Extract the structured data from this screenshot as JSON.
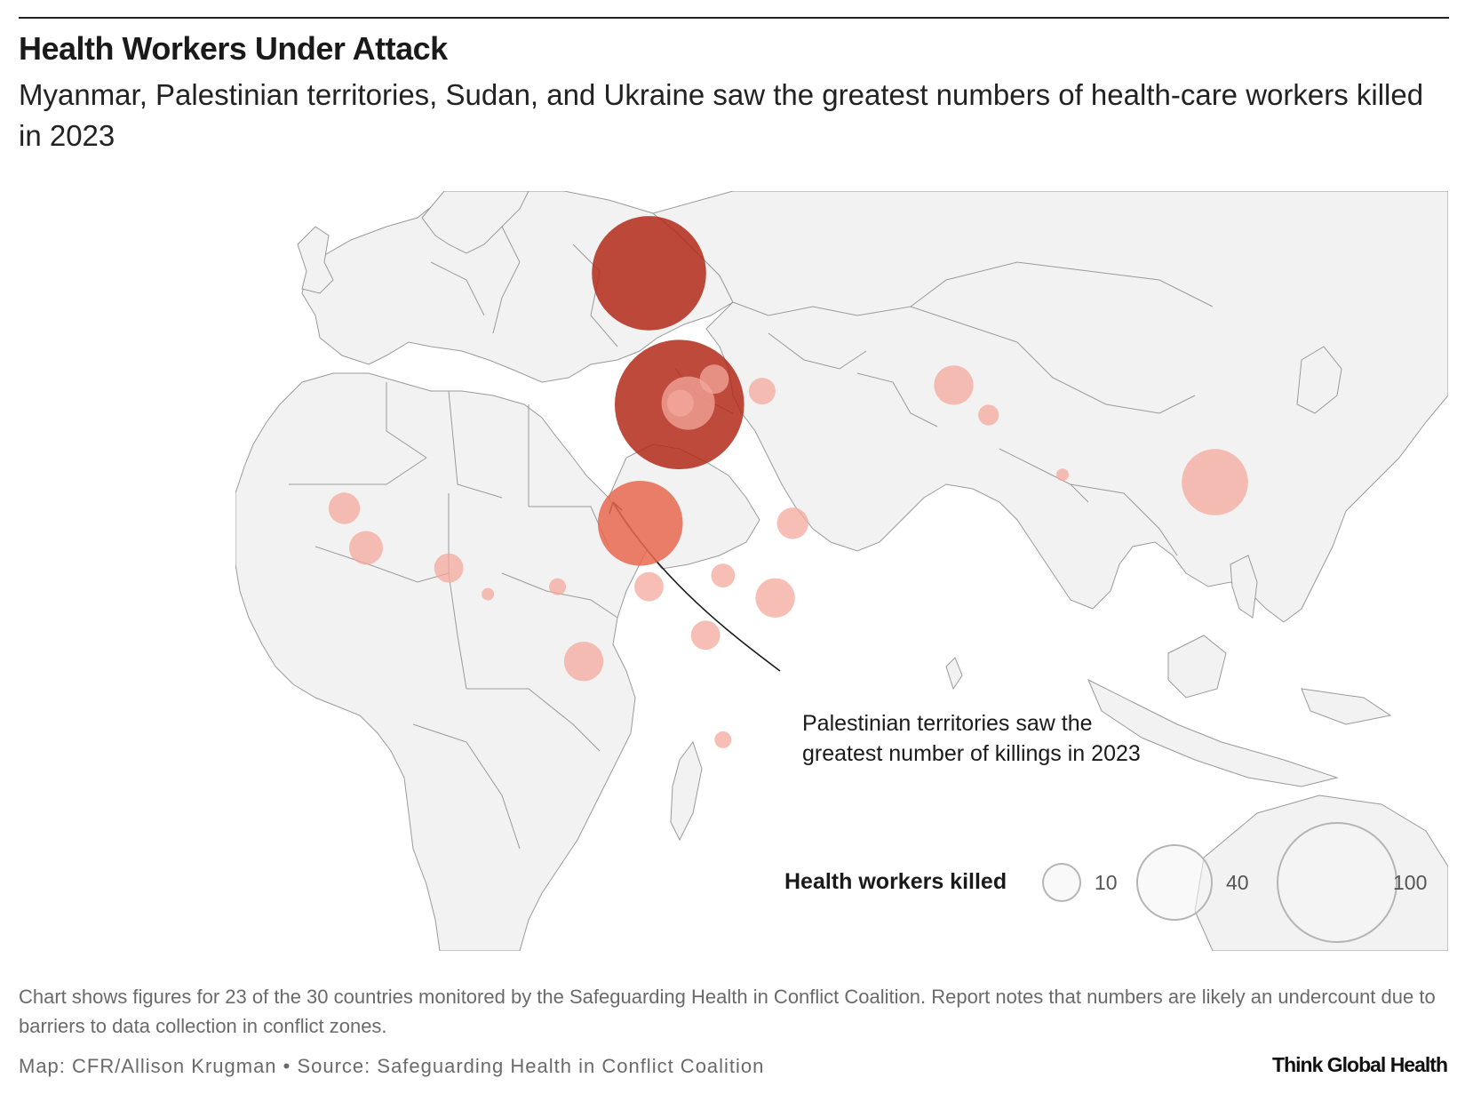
{
  "header": {
    "title": "Health Workers Under Attack",
    "subtitle": "Myanmar, Palestinian territories, Sudan, and Ukraine saw the greatest numbers of health-care workers killed in 2023"
  },
  "annotation": {
    "text_line1": "Palestinian territories saw the",
    "text_line2": "greatest number of killings in 2023"
  },
  "legend": {
    "title": "Health workers killed",
    "values": [
      "10",
      "40",
      "100"
    ]
  },
  "footer": {
    "note": "Chart shows figures for 23 of the 30 countries monitored by the Safeguarding Health in Conflict Coalition. Report notes that numbers are likely an undercount due to barriers to data collection in conflict zones.",
    "credit": "Map: CFR/Allison Krugman • Source: Safeguarding Health in Conflict Coalition",
    "logo": "Think Global Health"
  },
  "colors": {
    "land": "#f2f2f2",
    "border": "#9a9a9a",
    "scale_low": "#f4a89c",
    "scale_mid": "#e8694f",
    "scale_high": "#b22a17"
  },
  "chart_data": {
    "type": "proportional-symbol-map",
    "size_scale_reference": [
      10,
      40,
      100
    ],
    "points": [
      {
        "lon": 34.5,
        "lat": 31.4,
        "value": 118
      },
      {
        "lon": 31.0,
        "lat": 49.0,
        "value": 92
      },
      {
        "lon": 30.0,
        "lat": 15.5,
        "value": 51
      },
      {
        "lon": 96.0,
        "lat": 21.0,
        "value": 31
      },
      {
        "lon": 66.0,
        "lat": 34.0,
        "value": 11
      },
      {
        "lon": 70.0,
        "lat": 30.0,
        "value": 3
      },
      {
        "lon": 78.5,
        "lat": 22.0,
        "value": 1
      },
      {
        "lon": 38.5,
        "lat": 34.8,
        "value": 6
      },
      {
        "lon": 44.0,
        "lat": 33.2,
        "value": 5
      },
      {
        "lon": -4.0,
        "lat": 17.5,
        "value": 7
      },
      {
        "lon": -1.5,
        "lat": 12.2,
        "value": 8
      },
      {
        "lon": 8.0,
        "lat": 9.5,
        "value": 6
      },
      {
        "lon": 12.5,
        "lat": 6.0,
        "value": 1
      },
      {
        "lon": 20.5,
        "lat": 7.0,
        "value": 2
      },
      {
        "lon": 31.0,
        "lat": 7.0,
        "value": 6
      },
      {
        "lon": 39.5,
        "lat": 8.5,
        "value": 4
      },
      {
        "lon": 47.5,
        "lat": 15.5,
        "value": 7
      },
      {
        "lon": 45.5,
        "lat": 5.5,
        "value": 11
      },
      {
        "lon": 37.5,
        "lat": 0.5,
        "value": 6
      },
      {
        "lon": 23.5,
        "lat": -3.0,
        "value": 11
      },
      {
        "lon": 39.5,
        "lat": -13.5,
        "value": 2
      },
      {
        "lon": 35.5,
        "lat": 31.6,
        "value": 20
      },
      {
        "lon": 34.6,
        "lat": 31.6,
        "value": 5
      }
    ]
  }
}
